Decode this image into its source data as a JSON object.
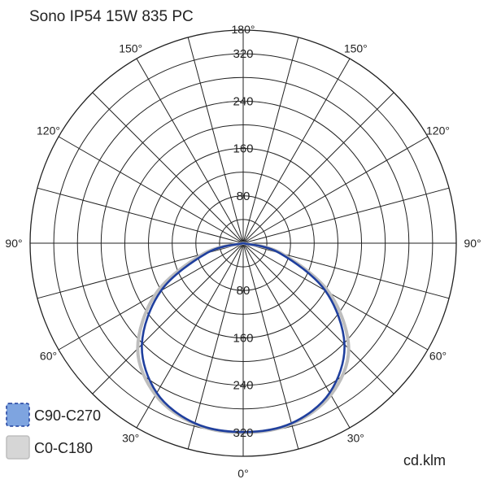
{
  "chart_data": {
    "type": "polar",
    "title": "Sono IP54 15W 835 PC",
    "unit": "cd.klm",
    "r_ticks": [
      80,
      160,
      240,
      320
    ],
    "r_max": 360,
    "angle_labels": [
      {
        "angle": 0,
        "label": "0°"
      },
      {
        "angle": 30,
        "label": "30°"
      },
      {
        "angle": -30,
        "label": "30°"
      },
      {
        "angle": 60,
        "label": "60°"
      },
      {
        "angle": -60,
        "label": "60°"
      },
      {
        "angle": 90,
        "label": "90°"
      },
      {
        "angle": -90,
        "label": "90°"
      },
      {
        "angle": 120,
        "label": "120°"
      },
      {
        "angle": -120,
        "label": "120°"
      },
      {
        "angle": 150,
        "label": "150°"
      },
      {
        "angle": -150,
        "label": "150°"
      },
      {
        "angle": 180,
        "label": "180°"
      }
    ],
    "series": [
      {
        "name": "C0-C180",
        "color": "#bdbdbd",
        "legend_fill": "#d6d6d6",
        "angles": [
          -90,
          -75,
          -60,
          -45,
          -30,
          -15,
          0,
          15,
          30,
          45,
          60,
          75,
          90
        ],
        "values": [
          0,
          70,
          170,
          252,
          296,
          316,
          320,
          316,
          296,
          252,
          168,
          67,
          0
        ]
      },
      {
        "name": "C90-C270",
        "color": "#1f3f9e",
        "legend_fill": "#7ea4e0",
        "angles": [
          -90,
          -75,
          -60,
          -45,
          -30,
          -15,
          0,
          15,
          30,
          45,
          60,
          75,
          90
        ],
        "values": [
          0,
          63,
          160,
          242,
          292,
          315,
          319,
          315,
          292,
          242,
          160,
          63,
          0
        ]
      }
    ],
    "legend": [
      {
        "label": "C90-C270",
        "series": 1
      },
      {
        "label": "C0-C180",
        "series": 0
      }
    ]
  }
}
